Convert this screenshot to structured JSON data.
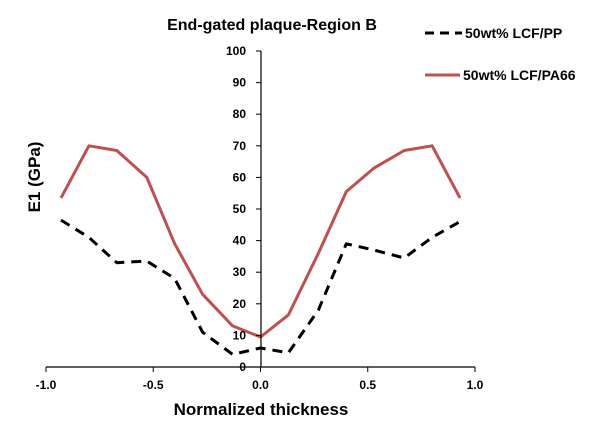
{
  "chart_data": {
    "type": "line",
    "title": "End-gated plaque-Region B",
    "xlabel": "Normalized thickness",
    "ylabel": "E1 (GPa)",
    "xlim": [
      -1.0,
      1.0
    ],
    "ylim": [
      0,
      100
    ],
    "x_ticks": [
      "-1.0",
      "-0.5",
      "0.0",
      "0.5",
      "1.0"
    ],
    "y_ticks": [
      "0",
      "10",
      "20",
      "30",
      "40",
      "50",
      "60",
      "70",
      "80",
      "90",
      "100"
    ],
    "grid": false,
    "legend_position": "top-right",
    "series": [
      {
        "name": "50wt% LCF/PP",
        "color": "#000000",
        "style": "dashed",
        "x": [
          -0.93,
          -0.8,
          -0.67,
          -0.53,
          -0.4,
          -0.27,
          -0.13,
          0.0,
          0.13,
          0.27,
          0.4,
          0.53,
          0.67,
          0.8,
          0.93
        ],
        "y": [
          46.5,
          41,
          33,
          33.5,
          28,
          11,
          4,
          6,
          4.5,
          18,
          39,
          37,
          34.5,
          41,
          46
        ]
      },
      {
        "name": "50wt% LCF/PA66",
        "color": "#c0504d",
        "style": "solid",
        "x": [
          -0.93,
          -0.8,
          -0.67,
          -0.53,
          -0.4,
          -0.27,
          -0.13,
          0.0,
          0.13,
          0.27,
          0.4,
          0.53,
          0.67,
          0.8,
          0.93
        ],
        "y": [
          53.5,
          70,
          68.5,
          60,
          39,
          23,
          13,
          9.5,
          16.5,
          36,
          55.5,
          63,
          68.5,
          70,
          53.5
        ]
      }
    ]
  }
}
